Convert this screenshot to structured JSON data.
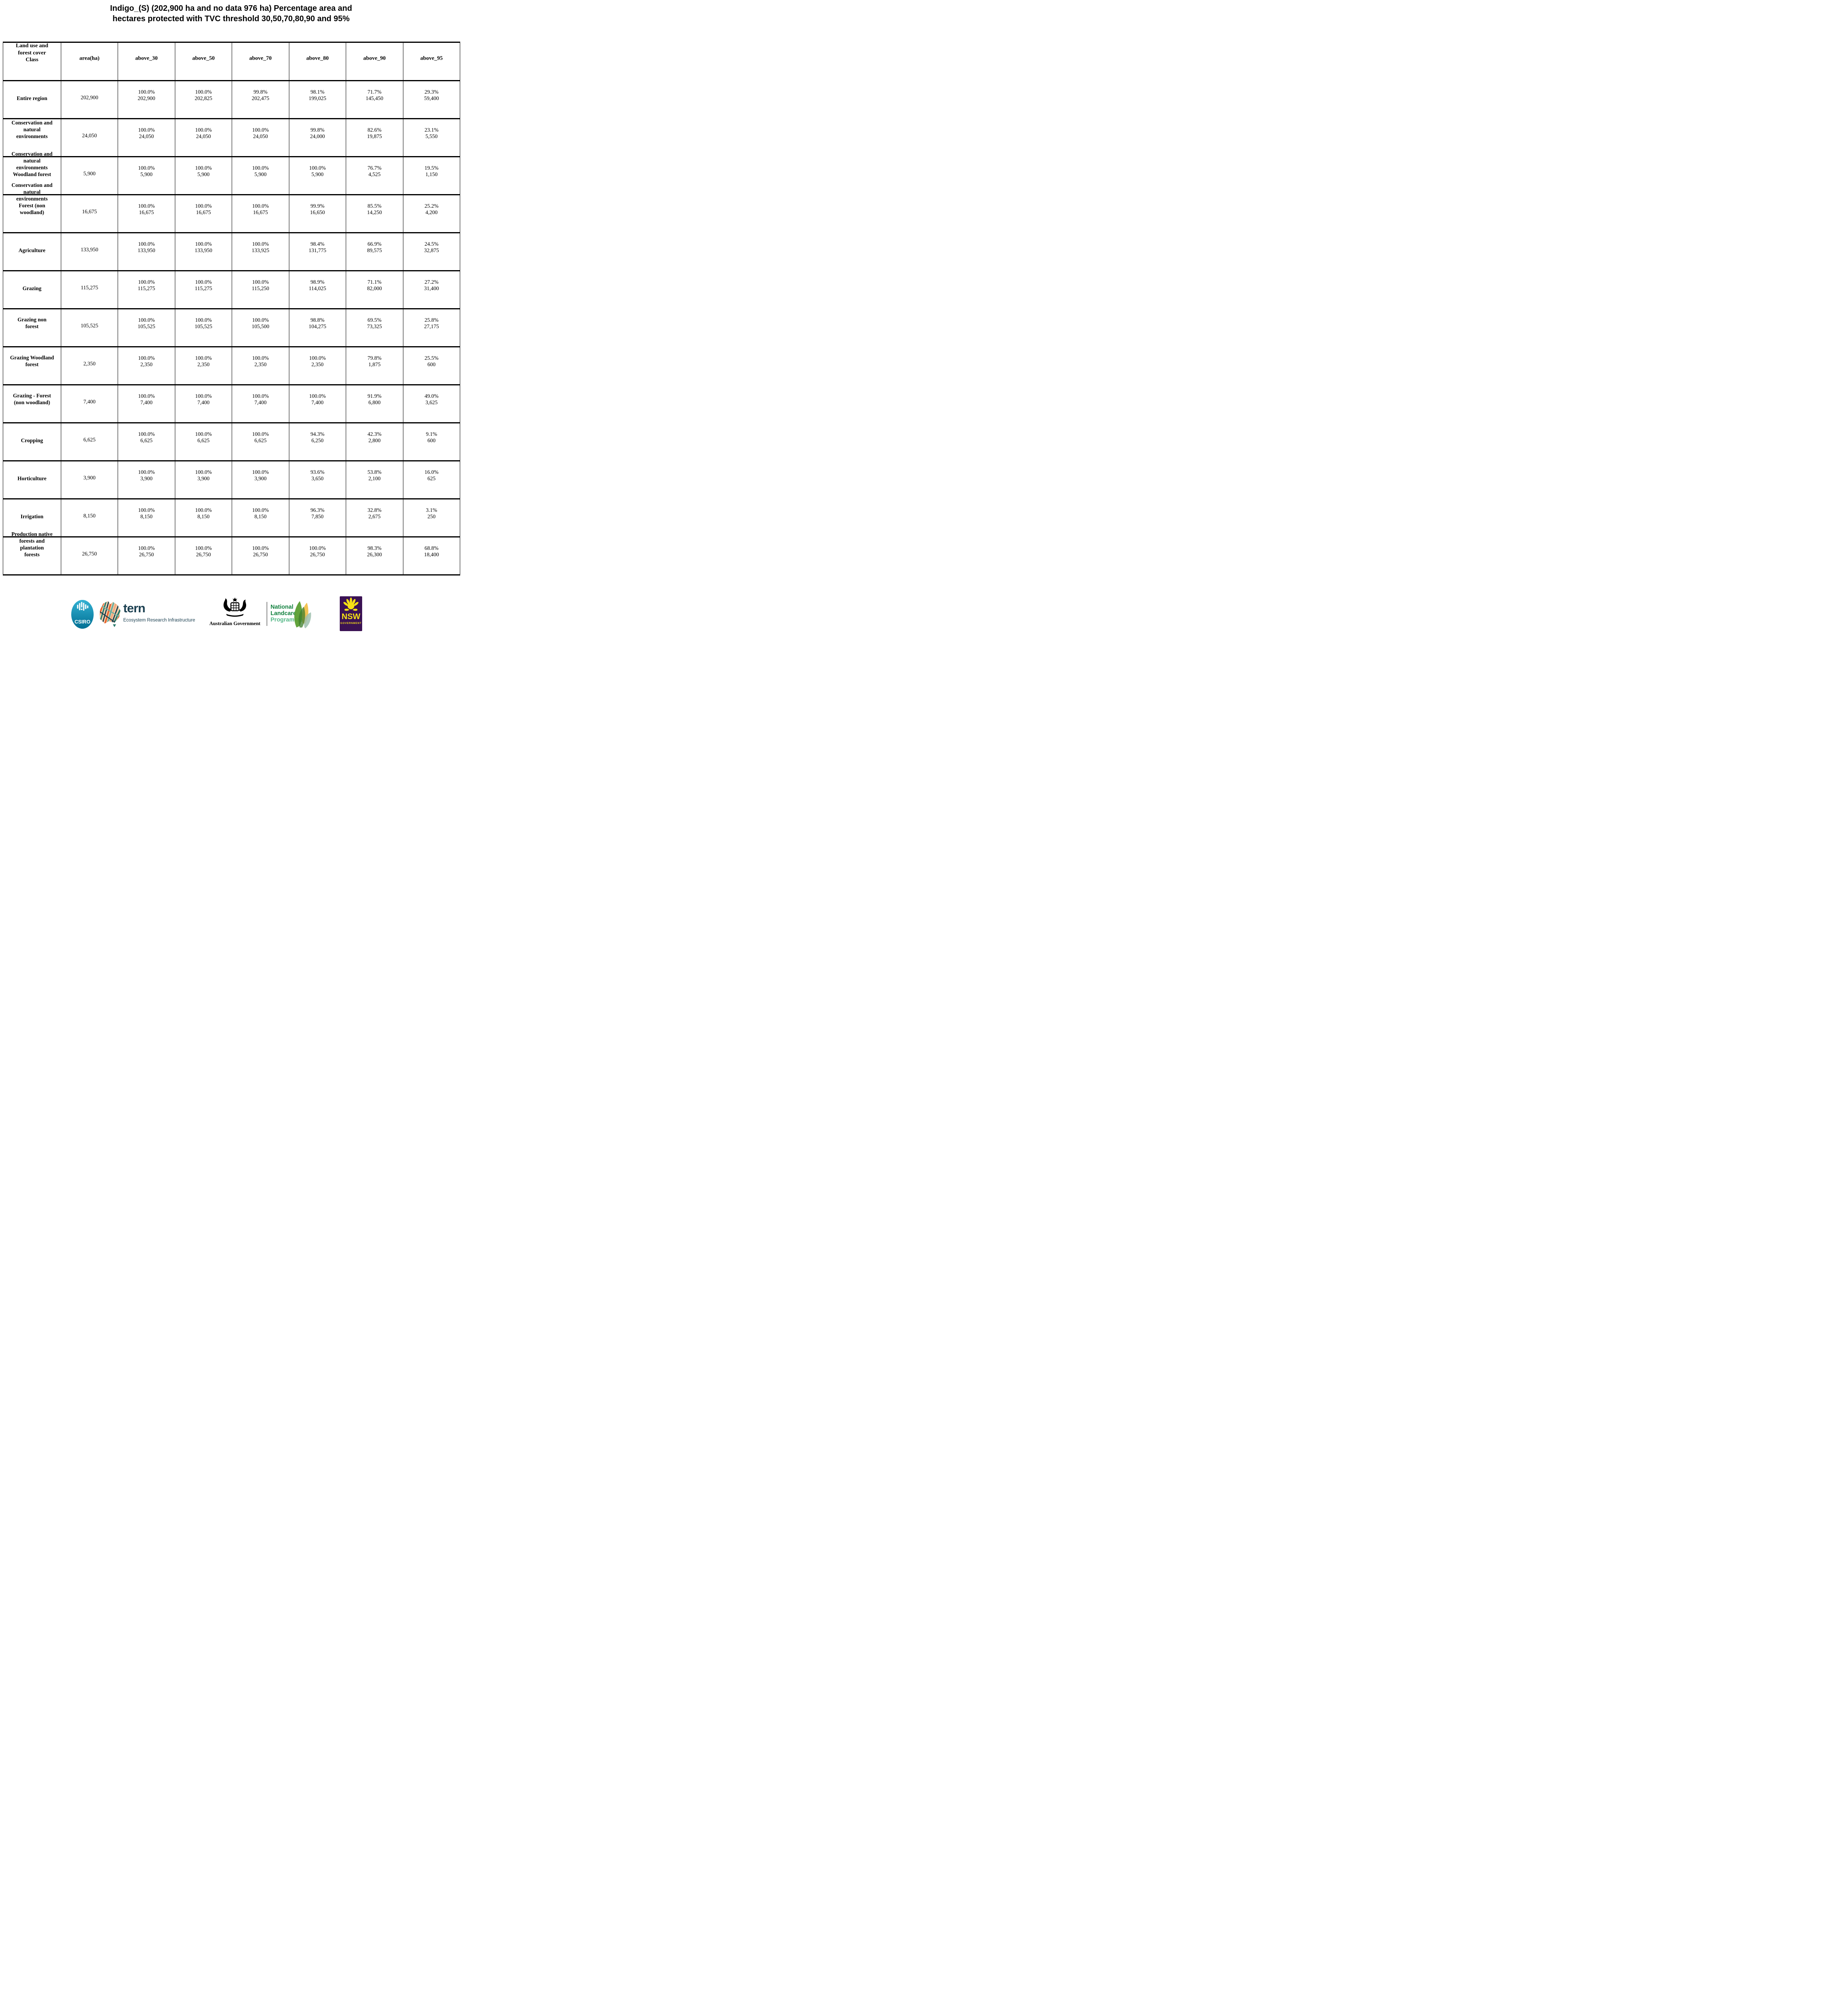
{
  "title": {
    "line1": "Indigo_(S) (202,900 ha and no data 976 ha) Percentage area and",
    "line2": "hectares protected with TVC threshold 30,50,70,80,90 and 95%"
  },
  "table": {
    "columns": [
      "Land use and\nforest cover\nClass",
      "area(ha)",
      "above_30",
      "above_50",
      "above_70",
      "above_80",
      "above_90",
      "above_95"
    ],
    "rows": [
      {
        "label": "Entire region",
        "area": "202,900",
        "cells": [
          {
            "pct": "100.0%",
            "ha": "202,900"
          },
          {
            "pct": "100.0%",
            "ha": "202,825"
          },
          {
            "pct": "99.8%",
            "ha": "202,475"
          },
          {
            "pct": "98.1%",
            "ha": "199,025"
          },
          {
            "pct": "71.7%",
            "ha": "145,450"
          },
          {
            "pct": "29.3%",
            "ha": "59,400"
          }
        ]
      },
      {
        "label": "Conservation and\nnatural\nenvironments",
        "area": "24,050",
        "cells": [
          {
            "pct": "100.0%",
            "ha": "24,050"
          },
          {
            "pct": "100.0%",
            "ha": "24,050"
          },
          {
            "pct": "100.0%",
            "ha": "24,050"
          },
          {
            "pct": "99.8%",
            "ha": "24,000"
          },
          {
            "pct": "82.6%",
            "ha": "19,875"
          },
          {
            "pct": "23.1%",
            "ha": "5,550"
          }
        ]
      },
      {
        "label": "Conservation and\nnatural\nenvironments\nWoodland forest",
        "area": "5,900",
        "cells": [
          {
            "pct": "100.0%",
            "ha": "5,900"
          },
          {
            "pct": "100.0%",
            "ha": "5,900"
          },
          {
            "pct": "100.0%",
            "ha": "5,900"
          },
          {
            "pct": "100.0%",
            "ha": "5,900"
          },
          {
            "pct": "76.7%",
            "ha": "4,525"
          },
          {
            "pct": "19.5%",
            "ha": "1,150"
          }
        ]
      },
      {
        "label": "Conservation and\nnatural\nenvironments\nForest (non\nwoodland)",
        "area": "16,675",
        "cells": [
          {
            "pct": "100.0%",
            "ha": "16,675"
          },
          {
            "pct": "100.0%",
            "ha": "16,675"
          },
          {
            "pct": "100.0%",
            "ha": "16,675"
          },
          {
            "pct": "99.9%",
            "ha": "16,650"
          },
          {
            "pct": "85.5%",
            "ha": "14,250"
          },
          {
            "pct": "25.2%",
            "ha": "4,200"
          }
        ]
      },
      {
        "label": "Agriculture",
        "area": "133,950",
        "cells": [
          {
            "pct": "100.0%",
            "ha": "133,950"
          },
          {
            "pct": "100.0%",
            "ha": "133,950"
          },
          {
            "pct": "100.0%",
            "ha": "133,925"
          },
          {
            "pct": "98.4%",
            "ha": "131,775"
          },
          {
            "pct": "66.9%",
            "ha": "89,575"
          },
          {
            "pct": "24.5%",
            "ha": "32,875"
          }
        ]
      },
      {
        "label": "Grazing",
        "area": "115,275",
        "cells": [
          {
            "pct": "100.0%",
            "ha": "115,275"
          },
          {
            "pct": "100.0%",
            "ha": "115,275"
          },
          {
            "pct": "100.0%",
            "ha": "115,250"
          },
          {
            "pct": "98.9%",
            "ha": "114,025"
          },
          {
            "pct": "71.1%",
            "ha": "82,000"
          },
          {
            "pct": "27.2%",
            "ha": "31,400"
          }
        ]
      },
      {
        "label": "Grazing non\nforest",
        "area": "105,525",
        "cells": [
          {
            "pct": "100.0%",
            "ha": "105,525"
          },
          {
            "pct": "100.0%",
            "ha": "105,525"
          },
          {
            "pct": "100.0%",
            "ha": "105,500"
          },
          {
            "pct": "98.8%",
            "ha": "104,275"
          },
          {
            "pct": "69.5%",
            "ha": "73,325"
          },
          {
            "pct": "25.8%",
            "ha": "27,175"
          }
        ]
      },
      {
        "label": "Grazing Woodland\nforest",
        "area": "2,350",
        "cells": [
          {
            "pct": "100.0%",
            "ha": "2,350"
          },
          {
            "pct": "100.0%",
            "ha": "2,350"
          },
          {
            "pct": "100.0%",
            "ha": "2,350"
          },
          {
            "pct": "100.0%",
            "ha": "2,350"
          },
          {
            "pct": "79.8%",
            "ha": "1,875"
          },
          {
            "pct": "25.5%",
            "ha": "600"
          }
        ]
      },
      {
        "label": "Grazing - Forest\n(non woodland)",
        "area": "7,400",
        "cells": [
          {
            "pct": "100.0%",
            "ha": "7,400"
          },
          {
            "pct": "100.0%",
            "ha": "7,400"
          },
          {
            "pct": "100.0%",
            "ha": "7,400"
          },
          {
            "pct": "100.0%",
            "ha": "7,400"
          },
          {
            "pct": "91.9%",
            "ha": "6,800"
          },
          {
            "pct": "49.0%",
            "ha": "3,625"
          }
        ]
      },
      {
        "label": "Cropping",
        "area": "6,625",
        "cells": [
          {
            "pct": "100.0%",
            "ha": "6,625"
          },
          {
            "pct": "100.0%",
            "ha": "6,625"
          },
          {
            "pct": "100.0%",
            "ha": "6,625"
          },
          {
            "pct": "94.3%",
            "ha": "6,250"
          },
          {
            "pct": "42.3%",
            "ha": "2,800"
          },
          {
            "pct": "9.1%",
            "ha": "600"
          }
        ]
      },
      {
        "label": "Horticulture",
        "area": "3,900",
        "cells": [
          {
            "pct": "100.0%",
            "ha": "3,900"
          },
          {
            "pct": "100.0%",
            "ha": "3,900"
          },
          {
            "pct": "100.0%",
            "ha": "3,900"
          },
          {
            "pct": "93.6%",
            "ha": "3,650"
          },
          {
            "pct": "53.8%",
            "ha": "2,100"
          },
          {
            "pct": "16.0%",
            "ha": "625"
          }
        ]
      },
      {
        "label": "Irrigation",
        "area": "8,150",
        "cells": [
          {
            "pct": "100.0%",
            "ha": "8,150"
          },
          {
            "pct": "100.0%",
            "ha": "8,150"
          },
          {
            "pct": "100.0%",
            "ha": "8,150"
          },
          {
            "pct": "96.3%",
            "ha": "7,850"
          },
          {
            "pct": "32.8%",
            "ha": "2,675"
          },
          {
            "pct": "3.1%",
            "ha": "250"
          }
        ]
      },
      {
        "label": "Production native\nforests and\nplantation\nforests",
        "area": "26,750",
        "cells": [
          {
            "pct": "100.0%",
            "ha": "26,750"
          },
          {
            "pct": "100.0%",
            "ha": "26,750"
          },
          {
            "pct": "100.0%",
            "ha": "26,750"
          },
          {
            "pct": "100.0%",
            "ha": "26,750"
          },
          {
            "pct": "98.3%",
            "ha": "26,300"
          },
          {
            "pct": "68.8%",
            "ha": "18,400"
          }
        ]
      }
    ]
  },
  "footer": {
    "csiro_label": "CSIRO",
    "tern_name": "tern",
    "tern_tagline": "Ecosystem Research Infrastructure",
    "ausgov_label": "Australian Government",
    "landcare_line1": "National",
    "landcare_line2": "Landcare",
    "landcare_line3": "Programme",
    "nsw_label": "NSW",
    "nsw_sub": "GOVERNMENT"
  },
  "colors": {
    "tern_dark": "#1d4152",
    "landcare_green": "#12813f",
    "landcare_light": "#58b989",
    "nsw_purple": "#3b1254",
    "nsw_yellow": "#f7e214",
    "csiro_top": "#33b1d3",
    "csiro_bottom": "#006f93",
    "border_black": "#000000"
  }
}
